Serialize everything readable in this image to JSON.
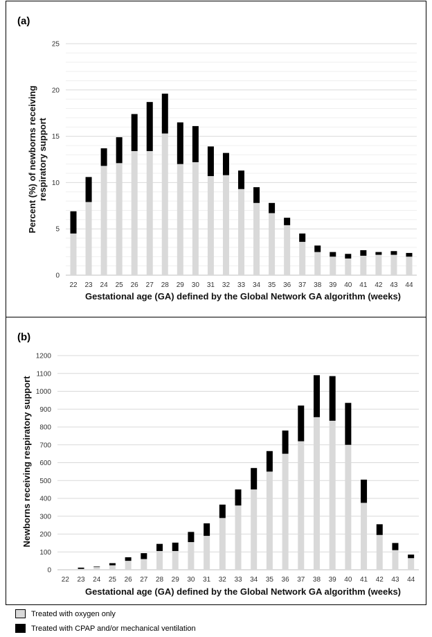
{
  "colors": {
    "oxygen": "#d9d9d9",
    "cpap": "#000000",
    "grid": "#d9d9d9",
    "minor_grid": "#efefef"
  },
  "legend": {
    "oxygen_label": "Treated with oxygen only",
    "cpap_label": "Treated with CPAP and/or mechanical ventilation"
  },
  "chart_data": [
    {
      "panel_label": "(a)",
      "type": "bar",
      "stacked": true,
      "xlabel": "Gestational age (GA) defined by the Global Network GA algorithm (weeks)",
      "ylabel": "Percent (%) of newborns receiving respiratory support",
      "ylim": [
        0,
        25
      ],
      "yticks": [
        0,
        5,
        10,
        15,
        20,
        25
      ],
      "grid": true,
      "categories": [
        "22",
        "23",
        "24",
        "25",
        "26",
        "27",
        "28",
        "29",
        "30",
        "31",
        "32",
        "33",
        "34",
        "35",
        "36",
        "37",
        "38",
        "39",
        "40",
        "41",
        "42",
        "43",
        "44"
      ],
      "series": [
        {
          "key": "oxygen",
          "values": [
            4.5,
            7.9,
            11.8,
            12.1,
            13.4,
            13.4,
            15.3,
            12.0,
            12.2,
            10.7,
            10.8,
            9.3,
            7.8,
            6.7,
            5.4,
            3.6,
            2.5,
            2.0,
            1.8,
            2.1,
            2.2,
            2.2,
            2.0
          ]
        },
        {
          "key": "cpap",
          "values": [
            2.4,
            2.7,
            1.9,
            2.8,
            4.0,
            5.3,
            4.3,
            4.5,
            3.9,
            3.2,
            2.4,
            2.0,
            1.7,
            1.1,
            0.8,
            0.9,
            0.7,
            0.5,
            0.5,
            0.6,
            0.3,
            0.4,
            0.4
          ]
        }
      ]
    },
    {
      "panel_label": "(b)",
      "type": "bar",
      "stacked": true,
      "xlabel": "Gestational age (GA) defined by the Global Network GA algorithm (weeks)",
      "ylabel": "Newborns receiving respiratory support",
      "ylim": [
        0,
        1200
      ],
      "yticks": [
        0,
        100,
        200,
        300,
        400,
        500,
        600,
        700,
        800,
        900,
        1000,
        1100,
        1200
      ],
      "grid": true,
      "categories": [
        "22",
        "23",
        "24",
        "25",
        "26",
        "27",
        "28",
        "29",
        "30",
        "31",
        "32",
        "33",
        "34",
        "35",
        "36",
        "37",
        "38",
        "39",
        "40",
        "41",
        "42",
        "43",
        "44"
      ],
      "series": [
        {
          "key": "oxygen",
          "values": [
            0,
            5,
            15,
            25,
            50,
            60,
            105,
            105,
            155,
            190,
            290,
            360,
            450,
            550,
            650,
            720,
            855,
            835,
            700,
            375,
            195,
            110,
            65
          ]
        },
        {
          "key": "cpap",
          "values": [
            0,
            7,
            3,
            12,
            20,
            33,
            40,
            47,
            57,
            70,
            75,
            90,
            120,
            115,
            130,
            200,
            235,
            250,
            235,
            130,
            60,
            40,
            20
          ]
        }
      ]
    }
  ]
}
